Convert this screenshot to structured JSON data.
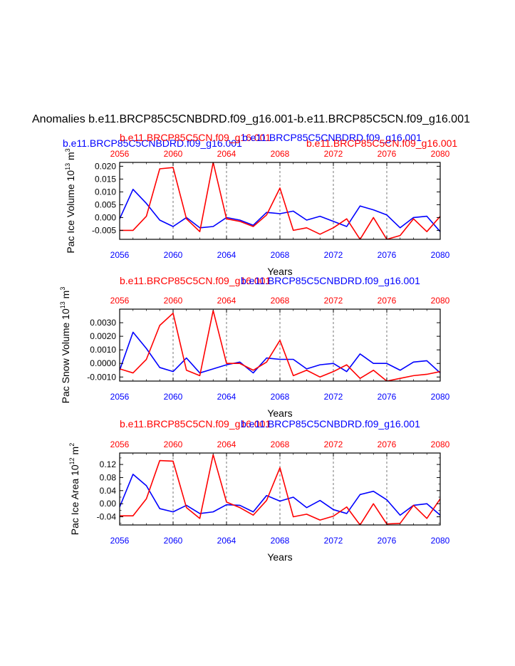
{
  "figure": {
    "title": "Anomalies b.e11.BRCP85C5CNBDRD.f09_g16.001-b.e11.BRCP85C5CN.f09_g16.001",
    "colors": {
      "blue": "#0000ff",
      "red": "#ff0000",
      "axis": "#000000",
      "grid": "#555555"
    }
  },
  "chart_data": [
    {
      "type": "line",
      "title_red": "b.e11.BRCP85C5CN.f09_g16.001",
      "title_blue": "b.e11.BRCP85C5CNBDRD.f09_g16.001",
      "title_red_b": "b.e11.BRCP85C5CN.f09_g16.001",
      "title_blue_b": "b.e11.BRCP85C5CNBDRD.f09_g16.001",
      "title_order": "red-left",
      "xlabel": "Years",
      "ylabel": "Pac Ice Volume 10",
      "ylabel_exp": "13",
      "ylabel_unit": "m",
      "ylabel_unit_exp": "3",
      "xlim": [
        2056,
        2080
      ],
      "xticks": [
        2056,
        2060,
        2064,
        2068,
        2072,
        2076,
        2080
      ],
      "xtick_labels": [
        "2056",
        "2060",
        "2064",
        "2068",
        "2072",
        "2076",
        "2080"
      ],
      "ylim": [
        -0.0085,
        0.0215
      ],
      "yticks": [
        -0.005,
        0.0,
        0.005,
        0.01,
        0.015,
        0.02
      ],
      "ytick_labels": [
        "-0.005",
        "0.000",
        "0.005",
        "0.010",
        "0.015",
        "0.020"
      ],
      "x": [
        2056,
        2057,
        2058,
        2059,
        2060,
        2061,
        2062,
        2063,
        2064,
        2065,
        2066,
        2067,
        2068,
        2069,
        2070,
        2071,
        2072,
        2073,
        2074,
        2075,
        2076,
        2077,
        2078,
        2079,
        2080
      ],
      "series": [
        {
          "name": "b.e11.BRCP85C5CNBDRD.f09_g16.001",
          "color": "#0000ff",
          "values": [
            -0.0005,
            0.011,
            0.0055,
            -0.001,
            -0.0035,
            0.0,
            -0.004,
            -0.0035,
            0.0,
            -0.001,
            -0.003,
            0.002,
            0.0015,
            0.0025,
            -0.001,
            0.0005,
            -0.0015,
            -0.0035,
            0.0045,
            0.003,
            0.001,
            -0.004,
            0.0,
            0.0005,
            -0.0055
          ]
        },
        {
          "name": "b.e11.BRCP85C5CN.f09_g16.001",
          "color": "#ff0000",
          "values": [
            -0.005,
            -0.005,
            0.0005,
            0.019,
            0.0195,
            -0.0005,
            -0.0055,
            0.0215,
            -0.0005,
            -0.0015,
            -0.0035,
            0.001,
            0.0115,
            -0.005,
            -0.004,
            -0.0065,
            -0.004,
            -0.0005,
            -0.0085,
            0.0,
            -0.0085,
            -0.007,
            -0.0005,
            -0.0055,
            0.0005
          ]
        }
      ]
    },
    {
      "type": "line",
      "title_red": "b.e11.BRCP85C5CN.f09_g16.001",
      "title_blue": "b.e11.BRCP85C5CNBDRD.f09_g16.001",
      "title_order": "red-left",
      "xlabel": "Years",
      "ylabel": "Pac Snow Volume 10",
      "ylabel_exp": "13",
      "ylabel_unit": "m",
      "ylabel_unit_exp": "3",
      "xlim": [
        2056,
        2080
      ],
      "xticks": [
        2056,
        2060,
        2064,
        2068,
        2072,
        2076,
        2080
      ],
      "xtick_labels": [
        "2056",
        "2060",
        "2064",
        "2068",
        "2072",
        "2076",
        "2080"
      ],
      "ylim": [
        -0.0013,
        0.004
      ],
      "yticks": [
        -0.001,
        0.0,
        0.001,
        0.002,
        0.003
      ],
      "ytick_labels": [
        "-0.0010",
        "0.0000",
        "0.0010",
        "0.0020",
        "0.0030"
      ],
      "x": [
        2056,
        2057,
        2058,
        2059,
        2060,
        2061,
        2062,
        2063,
        2064,
        2065,
        2066,
        2067,
        2068,
        2069,
        2070,
        2071,
        2072,
        2073,
        2074,
        2075,
        2076,
        2077,
        2078,
        2079,
        2080
      ],
      "series": [
        {
          "name": "b.e11.BRCP85C5CNBDRD.f09_g16.001",
          "color": "#0000ff",
          "values": [
            -0.0005,
            0.0023,
            0.0011,
            -0.0003,
            -0.0006,
            0.0004,
            -0.0007,
            -0.0004,
            -0.0001,
            0.0001,
            -0.0007,
            0.0004,
            0.0003,
            0.0003,
            -0.0004,
            -0.0001,
            0.0,
            -0.0006,
            0.0007,
            0.0,
            0.0,
            -0.0005,
            0.0001,
            0.0002,
            -0.0007
          ]
        },
        {
          "name": "b.e11.BRCP85C5CN.f09_g16.001",
          "color": "#ff0000",
          "values": [
            -0.0004,
            -0.0007,
            0.0003,
            0.0028,
            0.0037,
            -0.0005,
            -0.0009,
            0.0039,
            0.0,
            0.0,
            -0.0005,
            0.0001,
            0.0017,
            -0.0009,
            -0.0005,
            -0.001,
            -0.0006,
            -0.0001,
            -0.0011,
            -0.0005,
            -0.0013,
            -0.0011,
            -0.0009,
            -0.0008,
            -0.0006
          ]
        }
      ]
    },
    {
      "type": "line",
      "title_red": "b.e11.BRCP85C5CN.f09_g16.001",
      "title_blue": "b.e11.BRCP85C5CNBDRD.f09_g16.001",
      "title_order": "red-left",
      "xlabel": "Years",
      "ylabel": "Pac Ice Area 10",
      "ylabel_exp": "12",
      "ylabel_unit": "m",
      "ylabel_unit_exp": "2",
      "xlim": [
        2056,
        2080
      ],
      "xticks": [
        2056,
        2060,
        2064,
        2068,
        2072,
        2076,
        2080
      ],
      "xtick_labels": [
        "2056",
        "2060",
        "2064",
        "2068",
        "2072",
        "2076",
        "2080"
      ],
      "ylim": [
        -0.065,
        0.155
      ],
      "yticks": [
        -0.04,
        0.0,
        0.04,
        0.08,
        0.12
      ],
      "ytick_labels": [
        "-0.04",
        "0.00",
        "0.04",
        "0.08",
        "0.12"
      ],
      "yminor": [
        -0.06,
        -0.02,
        0.02,
        0.06,
        0.1,
        0.14
      ],
      "x": [
        2056,
        2057,
        2058,
        2059,
        2060,
        2061,
        2062,
        2063,
        2064,
        2065,
        2066,
        2067,
        2068,
        2069,
        2070,
        2071,
        2072,
        2073,
        2074,
        2075,
        2076,
        2077,
        2078,
        2079,
        2080
      ],
      "series": [
        {
          "name": "b.e11.BRCP85C5CNBDRD.f09_g16.001",
          "color": "#0000ff",
          "values": [
            -0.01,
            0.09,
            0.055,
            -0.015,
            -0.025,
            -0.005,
            -0.03,
            -0.025,
            -0.003,
            -0.005,
            -0.025,
            0.025,
            0.008,
            0.02,
            -0.012,
            0.01,
            -0.018,
            -0.03,
            0.028,
            0.038,
            0.012,
            -0.035,
            -0.005,
            0.0,
            -0.035
          ]
        },
        {
          "name": "b.e11.BRCP85C5CN.f09_g16.001",
          "color": "#ff0000",
          "values": [
            -0.037,
            -0.037,
            0.015,
            0.132,
            0.13,
            -0.012,
            -0.045,
            0.15,
            0.005,
            -0.012,
            -0.035,
            0.01,
            0.11,
            -0.04,
            -0.032,
            -0.05,
            -0.038,
            -0.01,
            -0.065,
            0.0,
            -0.062,
            -0.06,
            -0.005,
            -0.045,
            0.015
          ]
        }
      ]
    }
  ]
}
